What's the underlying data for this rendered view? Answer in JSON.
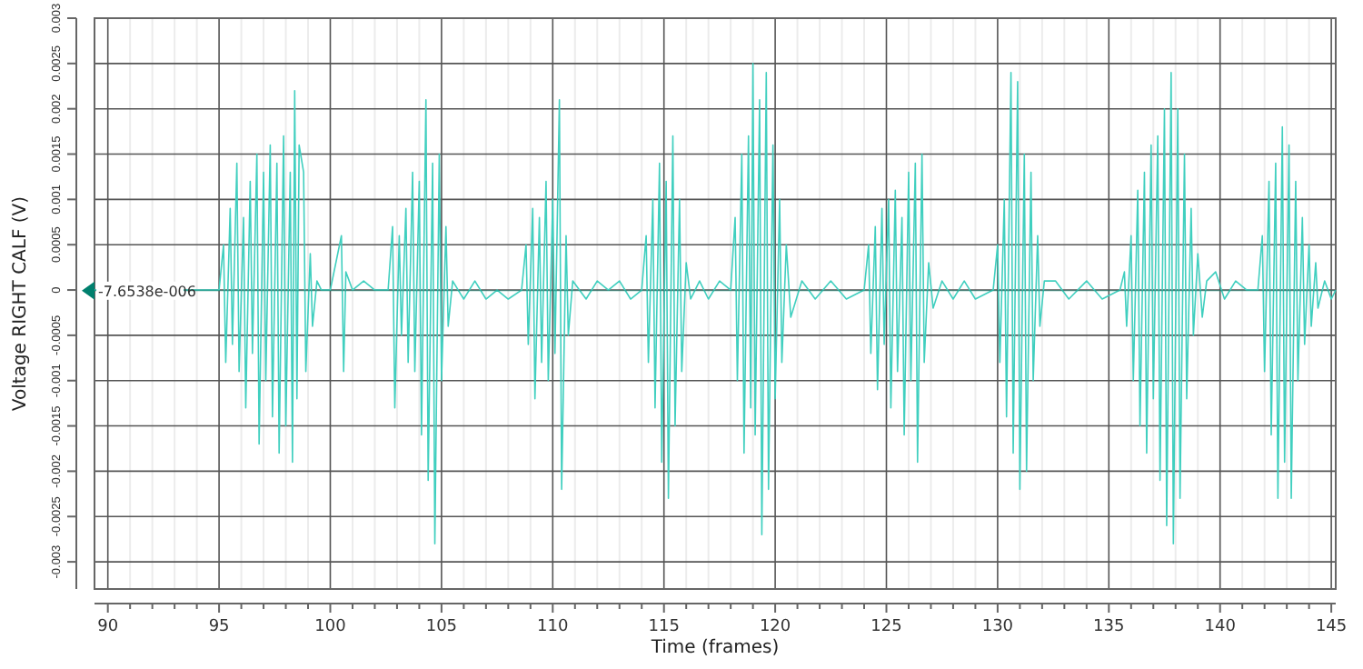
{
  "chart_data": {
    "type": "line",
    "xlabel": "Time (frames)",
    "ylabel": "Voltage RIGHT CALF (V)",
    "color": "#40cfbf",
    "marker": "none",
    "grid": true,
    "xlim": [
      89.4,
      145.2
    ],
    "ylim": [
      -0.0033,
      0.003
    ],
    "xticks": [
      90,
      {
        "value": 91,
        "label": null
      },
      {
        "value": 92,
        "label": null
      },
      {
        "value": 93,
        "label": null
      },
      {
        "value": 94,
        "label": null
      },
      95,
      {
        "value": 96,
        "label": null
      },
      {
        "value": 97,
        "label": null
      },
      {
        "value": 98,
        "label": null
      },
      {
        "value": 99,
        "label": null
      },
      100,
      {
        "value": 101,
        "label": null
      },
      {
        "value": 102,
        "label": null
      },
      {
        "value": 103,
        "label": null
      },
      {
        "value": 104,
        "label": null
      },
      105,
      {
        "value": 106,
        "label": null
      },
      {
        "value": 107,
        "label": null
      },
      {
        "value": 108,
        "label": null
      },
      {
        "value": 109,
        "label": null
      },
      110,
      {
        "value": 111,
        "label": null
      },
      {
        "value": 112,
        "label": null
      },
      {
        "value": 113,
        "label": null
      },
      {
        "value": 114,
        "label": null
      },
      115,
      {
        "value": 116,
        "label": null
      },
      {
        "value": 117,
        "label": null
      },
      {
        "value": 118,
        "label": null
      },
      {
        "value": 119,
        "label": null
      },
      120,
      {
        "value": 121,
        "label": null
      },
      {
        "value": 122,
        "label": null
      },
      {
        "value": 123,
        "label": null
      },
      {
        "value": 124,
        "label": null
      },
      125,
      {
        "value": 126,
        "label": null
      },
      {
        "value": 127,
        "label": null
      },
      {
        "value": 128,
        "label": null
      },
      {
        "value": 129,
        "label": null
      },
      130,
      {
        "value": 131,
        "label": null
      },
      {
        "value": 132,
        "label": null
      },
      {
        "value": 133,
        "label": null
      },
      {
        "value": 134,
        "label": null
      },
      135,
      {
        "value": 136,
        "label": null
      },
      {
        "value": 137,
        "label": null
      },
      {
        "value": 138,
        "label": null
      },
      {
        "value": 139,
        "label": null
      },
      140,
      {
        "value": 141,
        "label": null
      },
      {
        "value": 142,
        "label": null
      },
      {
        "value": 143,
        "label": null
      },
      {
        "value": 144,
        "label": null
      },
      145
    ],
    "yticks": [
      -0.003,
      -0.0025,
      -0.002,
      -0.0015,
      -0.001,
      -0.0005,
      0,
      0.0005,
      0.001,
      0.0015,
      0.002,
      0.0025,
      0.003
    ],
    "ref_lines": [
      {
        "axis": "y",
        "value": -7.6538e-06,
        "label": "-7.6538e-006",
        "color": "#00806e"
      }
    ],
    "x": [
      89.4,
      95.0,
      95.2,
      95.3,
      95.5,
      95.6,
      95.8,
      95.9,
      96.1,
      96.2,
      96.4,
      96.5,
      96.7,
      96.8,
      97.0,
      97.1,
      97.3,
      97.4,
      97.6,
      97.7,
      97.9,
      98.0,
      98.2,
      98.3,
      98.4,
      98.5,
      98.6,
      98.8,
      98.9,
      99.1,
      99.2,
      99.4,
      99.6,
      100.0,
      100.5,
      100.6,
      100.7,
      101.0,
      101.5,
      102.0,
      102.6,
      102.8,
      102.9,
      103.1,
      103.2,
      103.4,
      103.5,
      103.7,
      103.8,
      104.0,
      104.1,
      104.3,
      104.4,
      104.6,
      104.7,
      104.9,
      105.0,
      105.2,
      105.3,
      105.5,
      106.0,
      106.5,
      107.0,
      107.5,
      108.0,
      108.6,
      108.8,
      108.9,
      109.1,
      109.2,
      109.4,
      109.5,
      109.7,
      109.8,
      110.0,
      110.1,
      110.3,
      110.4,
      110.6,
      110.7,
      110.9,
      111.5,
      112.0,
      112.5,
      113.0,
      113.5,
      114.0,
      114.2,
      114.3,
      114.5,
      114.6,
      114.8,
      114.9,
      115.1,
      115.2,
      115.4,
      115.5,
      115.7,
      115.8,
      116.0,
      116.2,
      116.6,
      117.0,
      117.5,
      118.0,
      118.2,
      118.3,
      118.5,
      118.6,
      118.8,
      118.9,
      119.0,
      119.1,
      119.3,
      119.4,
      119.6,
      119.7,
      119.9,
      120.0,
      120.2,
      120.3,
      120.5,
      120.7,
      121.2,
      121.8,
      122.5,
      123.2,
      124.0,
      124.2,
      124.3,
      124.5,
      124.6,
      124.8,
      124.9,
      125.1,
      125.2,
      125.4,
      125.5,
      125.7,
      125.8,
      126.0,
      126.1,
      126.3,
      126.4,
      126.6,
      126.7,
      126.9,
      127.1,
      127.5,
      128.0,
      128.5,
      129.0,
      129.8,
      130.0,
      130.1,
      130.3,
      130.4,
      130.6,
      130.7,
      130.9,
      131.0,
      131.2,
      131.3,
      131.5,
      131.6,
      131.8,
      131.9,
      132.1,
      132.6,
      133.2,
      134.0,
      134.7,
      135.5,
      135.7,
      135.8,
      136.0,
      136.1,
      136.3,
      136.4,
      136.6,
      136.7,
      136.9,
      137.0,
      137.2,
      137.3,
      137.5,
      137.6,
      137.8,
      137.9,
      138.1,
      138.2,
      138.4,
      138.5,
      138.7,
      138.8,
      139.0,
      139.2,
      139.4,
      139.8,
      140.2,
      140.7,
      141.2,
      141.7,
      141.9,
      142.0,
      142.2,
      142.3,
      142.5,
      142.6,
      142.8,
      142.9,
      143.1,
      143.2,
      143.4,
      143.5,
      143.7,
      143.8,
      144.0,
      144.1,
      144.3,
      144.4,
      144.7,
      145.0,
      145.2
    ],
    "values": [
      0,
      0,
      0.0005,
      -0.0008,
      0.0009,
      -0.0006,
      0.0014,
      -0.0009,
      0.0008,
      -0.0013,
      0.0012,
      -0.0007,
      0.0015,
      -0.0017,
      0.0013,
      -0.001,
      0.0016,
      -0.0014,
      0.0014,
      -0.0018,
      0.0017,
      -0.0015,
      0.0013,
      -0.0019,
      0.0022,
      -0.0012,
      0.0016,
      0.0013,
      -0.0009,
      0.0004,
      -0.0004,
      0.0001,
      0,
      0,
      0.0006,
      -0.0009,
      0.0002,
      0,
      0.0001,
      0,
      0,
      0.0007,
      -0.0013,
      0.0006,
      -0.0005,
      0.0009,
      -0.0008,
      0.0013,
      -0.0009,
      0.0012,
      -0.0016,
      0.0021,
      -0.0021,
      0.0014,
      -0.0028,
      0.0015,
      -0.001,
      0.0007,
      -0.0004,
      0.0001,
      -0.0001,
      0.0001,
      -0.0001,
      0,
      -0.0001,
      0,
      0.0005,
      -0.0006,
      0.0009,
      -0.0012,
      0.0008,
      -0.0008,
      0.0012,
      -0.001,
      0.001,
      -0.0007,
      0.0021,
      -0.0022,
      0.0006,
      -0.0005,
      0.0001,
      -0.0001,
      0.0001,
      0,
      0.0001,
      -0.0001,
      0,
      0.0006,
      -0.0008,
      0.001,
      -0.0013,
      0.0014,
      -0.0019,
      0.0012,
      -0.0023,
      0.0017,
      -0.0015,
      0.001,
      -0.0009,
      0.0003,
      -0.0001,
      0.0001,
      -0.0001,
      0.0001,
      0,
      0.0008,
      -0.001,
      0.0015,
      -0.0018,
      0.0017,
      -0.0013,
      0.0025,
      -0.0016,
      0.0021,
      -0.0027,
      0.0024,
      -0.0022,
      0.0016,
      -0.0012,
      0.001,
      -0.0008,
      0.0005,
      -0.0003,
      0.0001,
      -0.0001,
      0.0001,
      -0.0001,
      0,
      0.0005,
      -0.0007,
      0.0007,
      -0.0011,
      0.0009,
      -0.0006,
      0.001,
      -0.0013,
      0.0011,
      -0.0009,
      0.0008,
      -0.0016,
      0.0013,
      -0.001,
      0.0014,
      -0.0019,
      0.0015,
      -0.0008,
      0.0003,
      -0.0002,
      0.0001,
      -0.0001,
      0.0001,
      -0.0001,
      0,
      0.0005,
      -0.0008,
      0.001,
      -0.0014,
      0.0024,
      -0.0018,
      0.0023,
      -0.0022,
      0.0015,
      -0.002,
      0.0013,
      -0.001,
      0.0006,
      -0.0004,
      0.0001,
      0.0001,
      -0.0001,
      0.0001,
      -0.0001,
      0,
      0.0002,
      -0.0004,
      0.0006,
      -0.001,
      0.0011,
      -0.0015,
      0.0013,
      -0.0018,
      0.0016,
      -0.0012,
      0.0017,
      -0.0021,
      0.002,
      -0.0026,
      0.0024,
      -0.0028,
      0.002,
      -0.0023,
      0.0015,
      -0.0012,
      0.0009,
      -0.0005,
      0.0004,
      -0.0003,
      0.0001,
      0.0002,
      -0.0001,
      0.0001,
      0,
      0,
      0.0006,
      -0.0009,
      0.0012,
      -0.0016,
      0.0014,
      -0.0023,
      0.0018,
      -0.0019,
      0.0016,
      -0.0023,
      0.0012,
      -0.001,
      0.0008,
      -0.0006,
      0.0005,
      -0.0004,
      0.0003,
      -0.0002,
      0.0001,
      -0.0001,
      0
    ]
  }
}
